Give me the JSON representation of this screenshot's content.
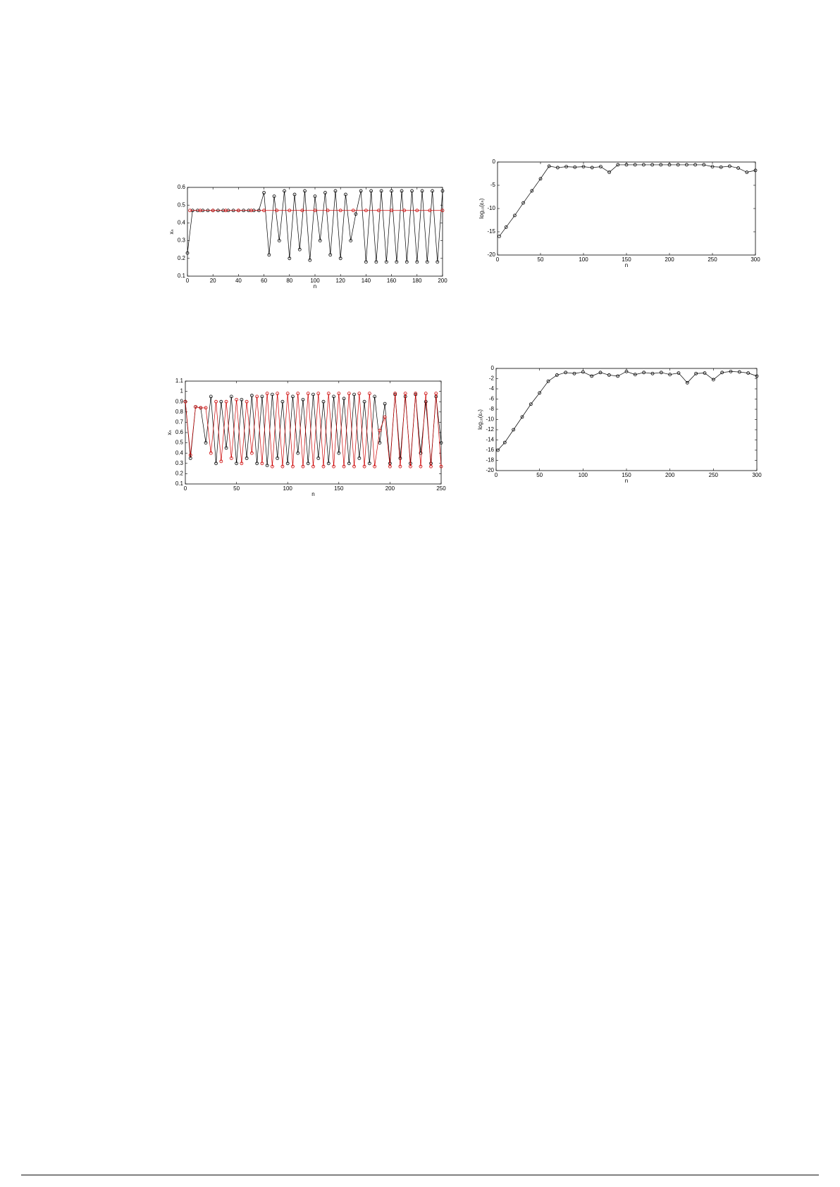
{
  "chart_data": [
    {
      "type": "line",
      "xlabel": "n",
      "ylabel": "xₙ",
      "xlim": [
        0,
        200
      ],
      "ylim": [
        0.1,
        0.6
      ],
      "xticks": [
        0,
        20,
        40,
        60,
        80,
        100,
        120,
        140,
        160,
        180,
        200
      ],
      "yticks": [
        0.1,
        0.2,
        0.3,
        0.4,
        0.5,
        0.6
      ],
      "series": [
        {
          "color": "#000000",
          "x": [
            0,
            4,
            8,
            12,
            16,
            20,
            24,
            28,
            32,
            36,
            40,
            44,
            48,
            52,
            56,
            60,
            64,
            68,
            72,
            76,
            80,
            84,
            88,
            92,
            96,
            100,
            104,
            108,
            112,
            116,
            120,
            124,
            128,
            132,
            136,
            140,
            144,
            148,
            152,
            156,
            160,
            164,
            168,
            172,
            176,
            180,
            184,
            188,
            192,
            196,
            200
          ],
          "values": [
            0.23,
            0.47,
            0.47,
            0.47,
            0.47,
            0.47,
            0.47,
            0.47,
            0.47,
            0.47,
            0.47,
            0.47,
            0.47,
            0.47,
            0.47,
            0.57,
            0.22,
            0.55,
            0.3,
            0.58,
            0.2,
            0.56,
            0.25,
            0.58,
            0.19,
            0.55,
            0.3,
            0.57,
            0.22,
            0.58,
            0.2,
            0.56,
            0.3,
            0.45,
            0.58,
            0.18,
            0.58,
            0.18,
            0.58,
            0.18,
            0.58,
            0.18,
            0.58,
            0.18,
            0.58,
            0.18,
            0.58,
            0.18,
            0.58,
            0.18,
            0.58
          ]
        },
        {
          "color": "#cc0000",
          "x": [
            2,
            10,
            20,
            30,
            40,
            50,
            60,
            70,
            80,
            90,
            100,
            110,
            120,
            130,
            140,
            150,
            160,
            170,
            180,
            190,
            200
          ],
          "values": [
            0.47,
            0.47,
            0.47,
            0.47,
            0.47,
            0.47,
            0.47,
            0.47,
            0.47,
            0.47,
            0.47,
            0.47,
            0.47,
            0.47,
            0.47,
            0.47,
            0.47,
            0.47,
            0.47,
            0.47,
            0.47
          ]
        }
      ]
    },
    {
      "type": "line",
      "xlabel": "n",
      "ylabel": "log₁₀(εₙ)",
      "xlim": [
        0,
        300
      ],
      "ylim": [
        -20,
        0
      ],
      "xticks": [
        0,
        50,
        100,
        150,
        200,
        250,
        300
      ],
      "yticks": [
        -20,
        -15,
        -10,
        -5,
        0
      ],
      "series": [
        {
          "color": "#000000",
          "x": [
            2,
            10,
            20,
            30,
            40,
            50,
            60,
            70,
            80,
            90,
            100,
            110,
            120,
            130,
            140,
            150,
            160,
            170,
            180,
            190,
            200,
            210,
            220,
            230,
            240,
            250,
            260,
            270,
            280,
            290,
            300
          ],
          "values": [
            -16,
            -14,
            -11.5,
            -8.8,
            -6.2,
            -3.6,
            -0.9,
            -1.2,
            -1,
            -1.1,
            -1,
            -1.2,
            -1,
            -2.2,
            -0.6,
            -0.6,
            -0.6,
            -0.6,
            -0.6,
            -0.6,
            -0.6,
            -0.6,
            -0.6,
            -0.6,
            -0.6,
            -1,
            -1.1,
            -0.9,
            -1.3,
            -2.2,
            -1.8
          ]
        }
      ]
    },
    {
      "type": "line",
      "xlabel": "n",
      "ylabel": "xₙ",
      "xlim": [
        0,
        250
      ],
      "ylim": [
        0.1,
        1.1
      ],
      "xticks": [
        0,
        50,
        100,
        150,
        200,
        250
      ],
      "yticks": [
        0.1,
        0.2,
        0.3,
        0.4,
        0.5,
        0.6,
        0.7,
        0.8,
        0.9,
        1,
        1.1
      ],
      "series": [
        {
          "color": "#000000",
          "x": [
            0,
            5,
            10,
            15,
            20,
            25,
            30,
            35,
            40,
            45,
            50,
            55,
            60,
            65,
            70,
            75,
            80,
            85,
            90,
            95,
            100,
            105,
            110,
            115,
            120,
            125,
            130,
            135,
            140,
            145,
            150,
            155,
            160,
            165,
            170,
            175,
            180,
            185,
            190,
            195,
            200,
            205,
            210,
            215,
            220,
            225,
            230,
            235,
            240,
            245,
            250
          ],
          "values": [
            0.9,
            0.35,
            0.85,
            0.84,
            0.5,
            0.95,
            0.3,
            0.9,
            0.45,
            0.95,
            0.3,
            0.92,
            0.35,
            0.96,
            0.3,
            0.95,
            0.28,
            0.97,
            0.35,
            0.9,
            0.3,
            0.95,
            0.4,
            0.92,
            0.3,
            0.97,
            0.35,
            0.9,
            0.3,
            0.95,
            0.4,
            0.93,
            0.3,
            0.97,
            0.35,
            0.9,
            0.3,
            0.95,
            0.5,
            0.88,
            0.3,
            0.97,
            0.35,
            0.95,
            0.3,
            0.97,
            0.4,
            0.9,
            0.3,
            0.95,
            0.5
          ]
        },
        {
          "color": "#cc0000",
          "x": [
            0,
            5,
            10,
            15,
            20,
            25,
            30,
            35,
            40,
            45,
            50,
            55,
            60,
            65,
            70,
            75,
            80,
            85,
            90,
            95,
            100,
            105,
            110,
            115,
            120,
            125,
            130,
            135,
            140,
            145,
            150,
            155,
            160,
            165,
            170,
            175,
            180,
            185,
            190,
            195,
            200,
            205,
            210,
            215,
            220,
            225,
            230,
            235,
            240,
            245,
            250
          ],
          "values": [
            0.9,
            0.38,
            0.85,
            0.84,
            0.84,
            0.4,
            0.9,
            0.32,
            0.9,
            0.35,
            0.92,
            0.3,
            0.9,
            0.4,
            0.95,
            0.3,
            0.98,
            0.27,
            0.98,
            0.27,
            0.98,
            0.27,
            0.98,
            0.27,
            0.98,
            0.27,
            0.98,
            0.27,
            0.98,
            0.27,
            0.98,
            0.27,
            0.98,
            0.27,
            0.98,
            0.27,
            0.98,
            0.27,
            0.62,
            0.75,
            0.27,
            0.98,
            0.27,
            0.98,
            0.27,
            0.98,
            0.27,
            0.98,
            0.27,
            0.98,
            0.27
          ]
        }
      ]
    },
    {
      "type": "line",
      "xlabel": "n",
      "ylabel": "log₁₀(εₙ)",
      "xlim": [
        0,
        300
      ],
      "ylim": [
        -20,
        0
      ],
      "xticks": [
        0,
        50,
        100,
        150,
        200,
        250,
        300
      ],
      "yticks": [
        -20,
        -18,
        -16,
        -14,
        -12,
        -10,
        -8,
        -6,
        -4,
        -2,
        0
      ],
      "series": [
        {
          "color": "#000000",
          "x": [
            2,
            10,
            20,
            30,
            40,
            50,
            60,
            70,
            80,
            90,
            100,
            110,
            120,
            130,
            140,
            150,
            160,
            170,
            180,
            190,
            200,
            210,
            220,
            230,
            240,
            250,
            260,
            270,
            280,
            290,
            300
          ],
          "values": [
            -16,
            -14.5,
            -12,
            -9.5,
            -7,
            -4.8,
            -2.5,
            -1.3,
            -0.8,
            -1,
            -0.7,
            -1.5,
            -0.8,
            -1.3,
            -1.5,
            -0.6,
            -1.2,
            -0.8,
            -1,
            -0.8,
            -1.2,
            -0.9,
            -2.8,
            -1,
            -0.9,
            -2.2,
            -0.8,
            -0.6,
            -0.7,
            -0.9,
            -1.5
          ]
        }
      ]
    }
  ]
}
